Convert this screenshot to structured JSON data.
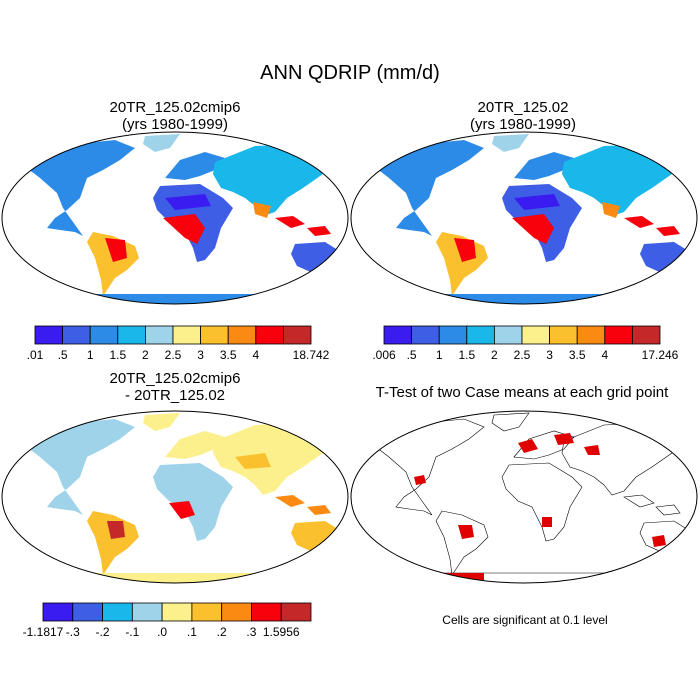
{
  "title": "ANN QDRIP (mm/d)",
  "panels": {
    "case1": {
      "line1": "20TR_125.02cmip6",
      "line2": "(yrs 1980-1999)"
    },
    "case2": {
      "line1": "20TR_125.02",
      "line2": "(yrs 1980-1999)"
    },
    "diff": {
      "line1": "20TR_125.02cmip6",
      "line2": "- 20TR_125.02"
    },
    "ttest": {
      "line1": "T-Test of two Case means at each grid point",
      "note": "Cells are significant at 0.1 level"
    }
  },
  "colorbars": {
    "case1": {
      "colors": [
        "#3b1cf0",
        "#3e5ee6",
        "#2d8be8",
        "#1ab7ea",
        "#9fd3ea",
        "#fbf08b",
        "#fbc02e",
        "#fb8a12",
        "#f8000c",
        "#c42828"
      ],
      "labels": [
        ".01",
        ".5",
        "1",
        "1.5",
        "2",
        "2.5",
        "3",
        "3.5",
        "4",
        "",
        "18.742"
      ]
    },
    "case2": {
      "colors": [
        "#3b1cf0",
        "#3e5ee6",
        "#2d8be8",
        "#1ab7ea",
        "#9fd3ea",
        "#fbf08b",
        "#fbc02e",
        "#fb8a12",
        "#f8000c",
        "#c42828"
      ],
      "labels": [
        ".006",
        ".5",
        "1",
        "1.5",
        "2",
        "2.5",
        "3",
        "3.5",
        "4",
        "",
        "17.246"
      ]
    },
    "diff": {
      "colors": [
        "#3b1cf0",
        "#3e5ee6",
        "#1ab7ea",
        "#9fd3ea",
        "#fbf08b",
        "#fbc02e",
        "#fb8a12",
        "#f8000c",
        "#c42828"
      ],
      "labels": [
        "-1.1817",
        "-.3",
        "-.2",
        "-.1",
        ".0",
        ".1",
        ".2",
        ".3",
        "1.5956"
      ]
    }
  }
}
